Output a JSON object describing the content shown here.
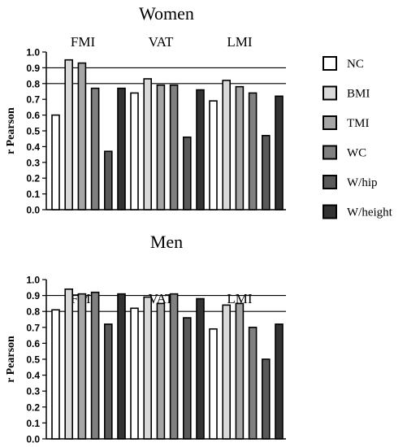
{
  "legend": [
    {
      "name": "NC",
      "color": "#ffffff"
    },
    {
      "name": "BMI",
      "color": "#d9d9d9"
    },
    {
      "name": "TMI",
      "color": "#a6a6a6"
    },
    {
      "name": "WC",
      "color": "#808080"
    },
    {
      "name": "W/hip",
      "color": "#595959"
    },
    {
      "name": "W/height",
      "color": "#333333"
    }
  ],
  "chart_data": [
    {
      "type": "bar",
      "title": "Women",
      "ylabel": "r Pearson",
      "ylim": [
        0,
        1.0
      ],
      "yticks": [
        "0.0",
        "0.1",
        "0.2",
        "0.3",
        "0.4",
        "0.5",
        "0.6",
        "0.7",
        "0.8",
        "0.9",
        "1.0"
      ],
      "categories": [
        "FMI",
        "VAT",
        "LMI"
      ],
      "reference_lines": [
        0.8,
        0.9
      ],
      "series": [
        {
          "name": "NC",
          "values": [
            0.6,
            0.74,
            0.69
          ]
        },
        {
          "name": "BMI",
          "values": [
            0.95,
            0.83,
            0.82
          ]
        },
        {
          "name": "TMI",
          "values": [
            0.93,
            0.79,
            0.78
          ]
        },
        {
          "name": "WC",
          "values": [
            0.77,
            0.79,
            0.74
          ]
        },
        {
          "name": "W/hip",
          "values": [
            0.37,
            0.46,
            0.47
          ]
        },
        {
          "name": "W/height",
          "values": [
            0.77,
            0.76,
            0.72
          ]
        }
      ]
    },
    {
      "type": "bar",
      "title": "Men",
      "ylabel": "r Pearson",
      "ylim": [
        0,
        1.0
      ],
      "yticks": [
        "0.0",
        "0.1",
        "0.2",
        "0.3",
        "0.4",
        "0.5",
        "0.6",
        "0.7",
        "0.8",
        "0.9",
        "1.0"
      ],
      "categories": [
        "FMI",
        "VAT",
        "LMI"
      ],
      "reference_lines": [
        0.8,
        0.9
      ],
      "series": [
        {
          "name": "NC",
          "values": [
            0.81,
            0.82,
            0.69
          ]
        },
        {
          "name": "BMI",
          "values": [
            0.94,
            0.89,
            0.84
          ]
        },
        {
          "name": "TMI",
          "values": [
            0.91,
            0.85,
            0.85
          ]
        },
        {
          "name": "WC",
          "values": [
            0.92,
            0.91,
            0.7
          ]
        },
        {
          "name": "W/hip",
          "values": [
            0.72,
            0.76,
            0.5
          ]
        },
        {
          "name": "W/height",
          "values": [
            0.91,
            0.88,
            0.72
          ]
        }
      ]
    }
  ]
}
